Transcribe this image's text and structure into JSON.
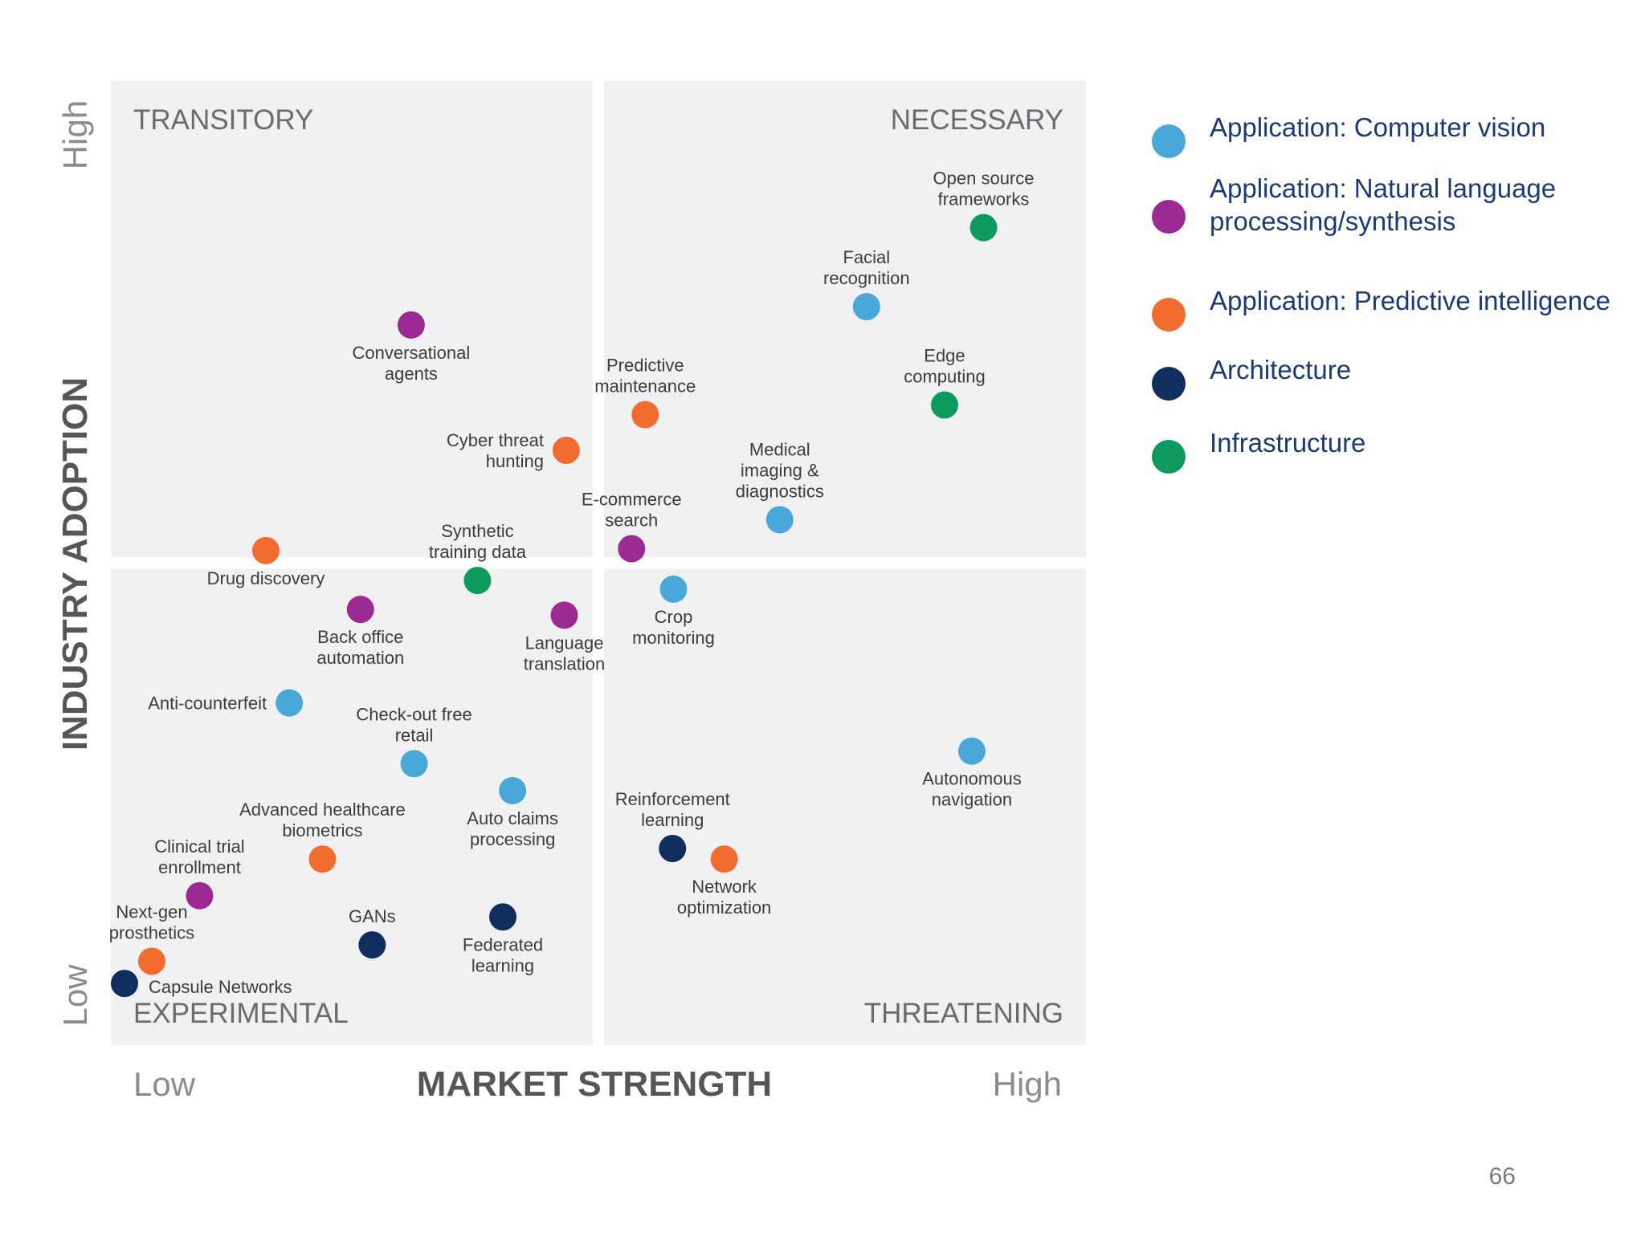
{
  "chart_data": {
    "type": "scatter",
    "xlabel": "MARKET STRENGTH",
    "ylabel": "INDUSTRY ADOPTION",
    "x_low_label": "Low",
    "x_high_label": "High",
    "y_low_label": "Low",
    "y_high_label": "High",
    "xlim": [
      0,
      100
    ],
    "ylim": [
      0,
      100
    ],
    "quadrants": {
      "top_left": "TRANSITORY",
      "top_right": "NECESSARY",
      "bottom_left": "EXPERIMENTAL",
      "bottom_right": "THREATENING"
    },
    "categories": [
      {
        "name": "Application: Computer vision",
        "label_lines": [
          "Application: Computer vision"
        ],
        "color": "#4aa8d8"
      },
      {
        "name": "Application: Natural language processing/synthesis",
        "label_lines": [
          "Application: Natural language",
          "processing/synthesis"
        ],
        "color": "#9b2a93"
      },
      {
        "name": "Application: Predictive intelligence",
        "label_lines": [
          "Application: Predictive intelligence"
        ],
        "color": "#f26b2f"
      },
      {
        "name": "Architecture",
        "label_lines": [
          "Architecture"
        ],
        "color": "#0f2d5e"
      },
      {
        "name": "Infrastructure",
        "label_lines": [
          "Infrastructure"
        ],
        "color": "#0e9a5e"
      }
    ],
    "points": [
      {
        "name": "Open source frameworks",
        "lines": [
          "Open source",
          "frameworks"
        ],
        "category": 4,
        "x": 89.5,
        "y": 84.8,
        "label_side": "above"
      },
      {
        "name": "Facial recognition",
        "lines": [
          "Facial",
          "recognition"
        ],
        "category": 0,
        "x": 77.5,
        "y": 76.6,
        "label_side": "above"
      },
      {
        "name": "Edge computing",
        "lines": [
          "Edge",
          "computing"
        ],
        "category": 4,
        "x": 85.5,
        "y": 66.4,
        "label_side": "above"
      },
      {
        "name": "Conversational agents",
        "lines": [
          "Conversational",
          "agents"
        ],
        "category": 1,
        "x": 30.8,
        "y": 74.7,
        "label_side": "below"
      },
      {
        "name": "Predictive maintenance",
        "lines": [
          "Predictive",
          "maintenance"
        ],
        "category": 2,
        "x": 54.8,
        "y": 65.4,
        "label_side": "above"
      },
      {
        "name": "Cyber threat hunting",
        "lines": [
          "Cyber threat",
          "hunting"
        ],
        "category": 2,
        "x": 46.7,
        "y": 61.7,
        "label_side": "left"
      },
      {
        "name": "Medical imaging & diagnostics",
        "lines": [
          "Medical",
          "imaging &",
          "diagnostics"
        ],
        "category": 0,
        "x": 68.6,
        "y": 54.5,
        "label_side": "above"
      },
      {
        "name": "E-commerce search",
        "lines": [
          "E-commerce",
          "search"
        ],
        "category": 1,
        "x": 53.4,
        "y": 51.5,
        "label_side": "above"
      },
      {
        "name": "Synthetic training data",
        "lines": [
          "Synthetic",
          "training data"
        ],
        "category": 4,
        "x": 37.6,
        "y": 48.2,
        "label_side": "above"
      },
      {
        "name": "Drug discovery",
        "lines": [
          "Drug discovery"
        ],
        "category": 2,
        "x": 15.9,
        "y": 51.3,
        "label_side": "below"
      },
      {
        "name": "Back office automation",
        "lines": [
          "Back office",
          "automation"
        ],
        "category": 1,
        "x": 25.6,
        "y": 45.2,
        "label_side": "below"
      },
      {
        "name": "Language translation",
        "lines": [
          "Language",
          "translation"
        ],
        "category": 1,
        "x": 46.5,
        "y": 44.6,
        "label_side": "below"
      },
      {
        "name": "Crop monitoring",
        "lines": [
          "Crop",
          "monitoring"
        ],
        "category": 0,
        "x": 57.7,
        "y": 47.3,
        "label_side": "below"
      },
      {
        "name": "Anti-counterfeit",
        "lines": [
          "Anti-counterfeit"
        ],
        "category": 0,
        "x": 18.3,
        "y": 35.5,
        "label_side": "left"
      },
      {
        "name": "Check-out free retail",
        "lines": [
          "Check-out free",
          "retail"
        ],
        "category": 0,
        "x": 31.1,
        "y": 29.2,
        "label_side": "above"
      },
      {
        "name": "Autonomous navigation",
        "lines": [
          "Autonomous",
          "navigation"
        ],
        "category": 0,
        "x": 88.3,
        "y": 30.5,
        "label_side": "below"
      },
      {
        "name": "Auto claims processing",
        "lines": [
          "Auto claims",
          "processing"
        ],
        "category": 0,
        "x": 41.2,
        "y": 26.4,
        "label_side": "below"
      },
      {
        "name": "Advanced healthcare biometrics",
        "lines": [
          "Advanced healthcare",
          "biometrics"
        ],
        "category": 2,
        "x": 21.7,
        "y": 19.3,
        "label_side": "above"
      },
      {
        "name": "Reinforcement learning",
        "lines": [
          "Reinforcement",
          "learning"
        ],
        "category": 3,
        "x": 57.6,
        "y": 20.4,
        "label_side": "above"
      },
      {
        "name": "Network optimization",
        "lines": [
          "Network",
          "optimization"
        ],
        "category": 2,
        "x": 62.9,
        "y": 19.3,
        "label_side": "below"
      },
      {
        "name": "Clinical trial enrollment",
        "lines": [
          "Clinical trial",
          "enrollment"
        ],
        "category": 1,
        "x": 9.1,
        "y": 15.5,
        "label_side": "above"
      },
      {
        "name": "GANs",
        "lines": [
          "GANs"
        ],
        "category": 3,
        "x": 26.8,
        "y": 10.4,
        "label_side": "above"
      },
      {
        "name": "Federated learning",
        "lines": [
          "Federated",
          "learning"
        ],
        "category": 3,
        "x": 40.2,
        "y": 13.3,
        "label_side": "below"
      },
      {
        "name": "Next-gen prosthetics",
        "lines": [
          "Next-gen",
          "prosthetics"
        ],
        "category": 2,
        "x": 4.2,
        "y": 8.7,
        "label_side": "above"
      },
      {
        "name": "Capsule Networks",
        "lines": [
          "Capsule Networks"
        ],
        "category": 3,
        "x": 1.4,
        "y": 6.4,
        "label_side": "right"
      }
    ]
  },
  "page": {
    "number": "66"
  }
}
